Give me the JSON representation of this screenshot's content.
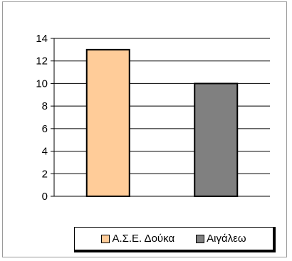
{
  "chart_data": {
    "type": "bar",
    "categories": [
      "Α.Σ.Ε. Δούκα",
      "Αιγάλεω"
    ],
    "values": [
      13,
      10
    ],
    "colors": [
      "#ffcc99",
      "#808080"
    ],
    "title": "",
    "xlabel": "",
    "ylabel": "",
    "ylim": [
      0,
      14
    ],
    "yticks": [
      "0",
      "2",
      "4",
      "6",
      "8",
      "10",
      "12",
      "14"
    ],
    "grid": true,
    "legend_position": "bottom"
  }
}
